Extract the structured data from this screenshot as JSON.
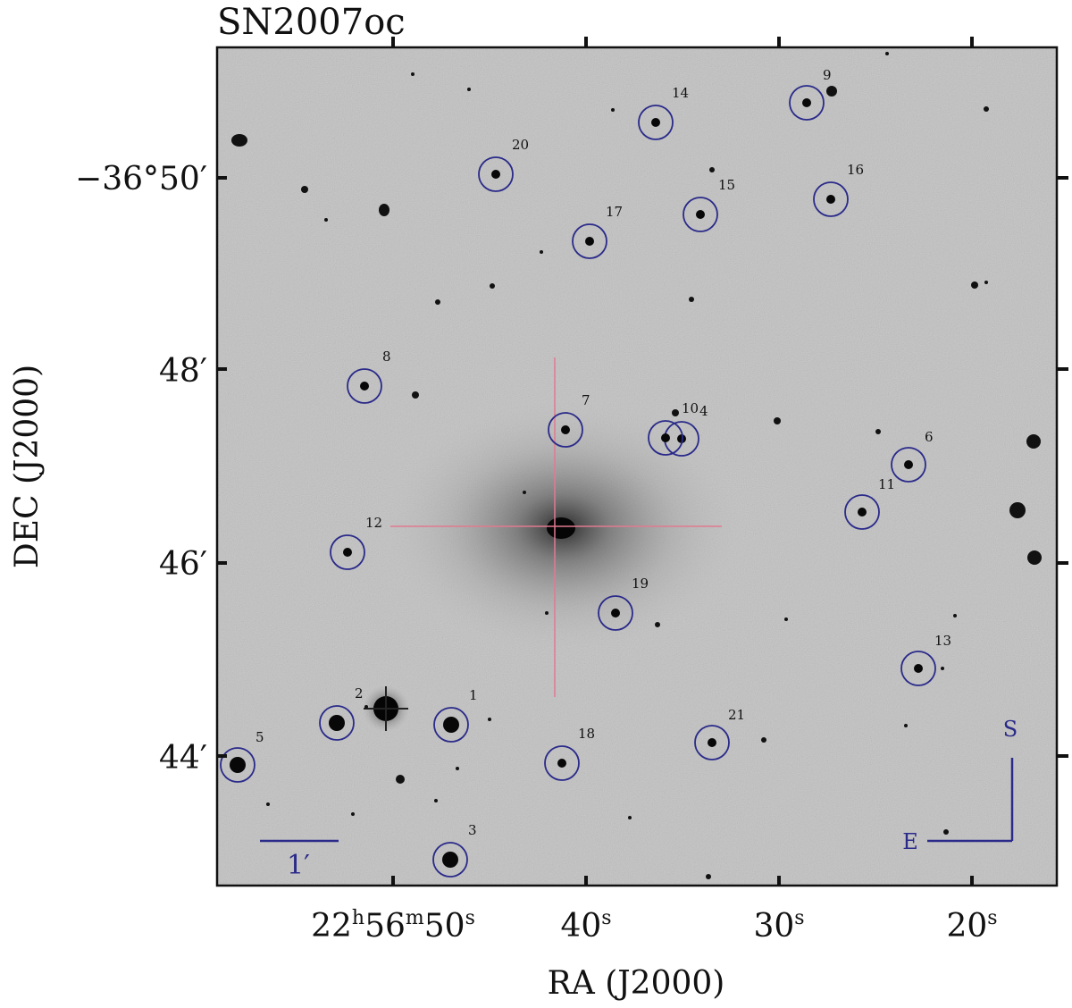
{
  "figure": {
    "title": "SN2007oc",
    "xlabel": "RA (J2000)",
    "ylabel": "DEC (J2000)"
  },
  "colors": {
    "sky": "#c9c9c9",
    "marker": "#2a2a8a",
    "crosshair": "#e07a90",
    "star": "#0a0a0a"
  },
  "ra_ticks": [
    {
      "h": "22",
      "m": "56",
      "s": "50",
      "full": true
    },
    {
      "s": "40"
    },
    {
      "s": "30"
    },
    {
      "s": "20"
    }
  ],
  "dec_ticks": [
    {
      "label": "−36°50′"
    },
    {
      "label": "48′"
    },
    {
      "label": "46′"
    },
    {
      "label": "44′"
    }
  ],
  "scale_bar": {
    "label": "1′"
  },
  "compass": {
    "north_label": "S",
    "east_label": "E"
  },
  "comparison_stars": [
    {
      "id": "1"
    },
    {
      "id": "2"
    },
    {
      "id": "3"
    },
    {
      "id": "4"
    },
    {
      "id": "5"
    },
    {
      "id": "6"
    },
    {
      "id": "7"
    },
    {
      "id": "8"
    },
    {
      "id": "9"
    },
    {
      "id": "10"
    },
    {
      "id": "11"
    },
    {
      "id": "12"
    },
    {
      "id": "13"
    },
    {
      "id": "14"
    },
    {
      "id": "15"
    },
    {
      "id": "16"
    },
    {
      "id": "17"
    },
    {
      "id": "18"
    },
    {
      "id": "19"
    },
    {
      "id": "20"
    },
    {
      "id": "21"
    }
  ]
}
